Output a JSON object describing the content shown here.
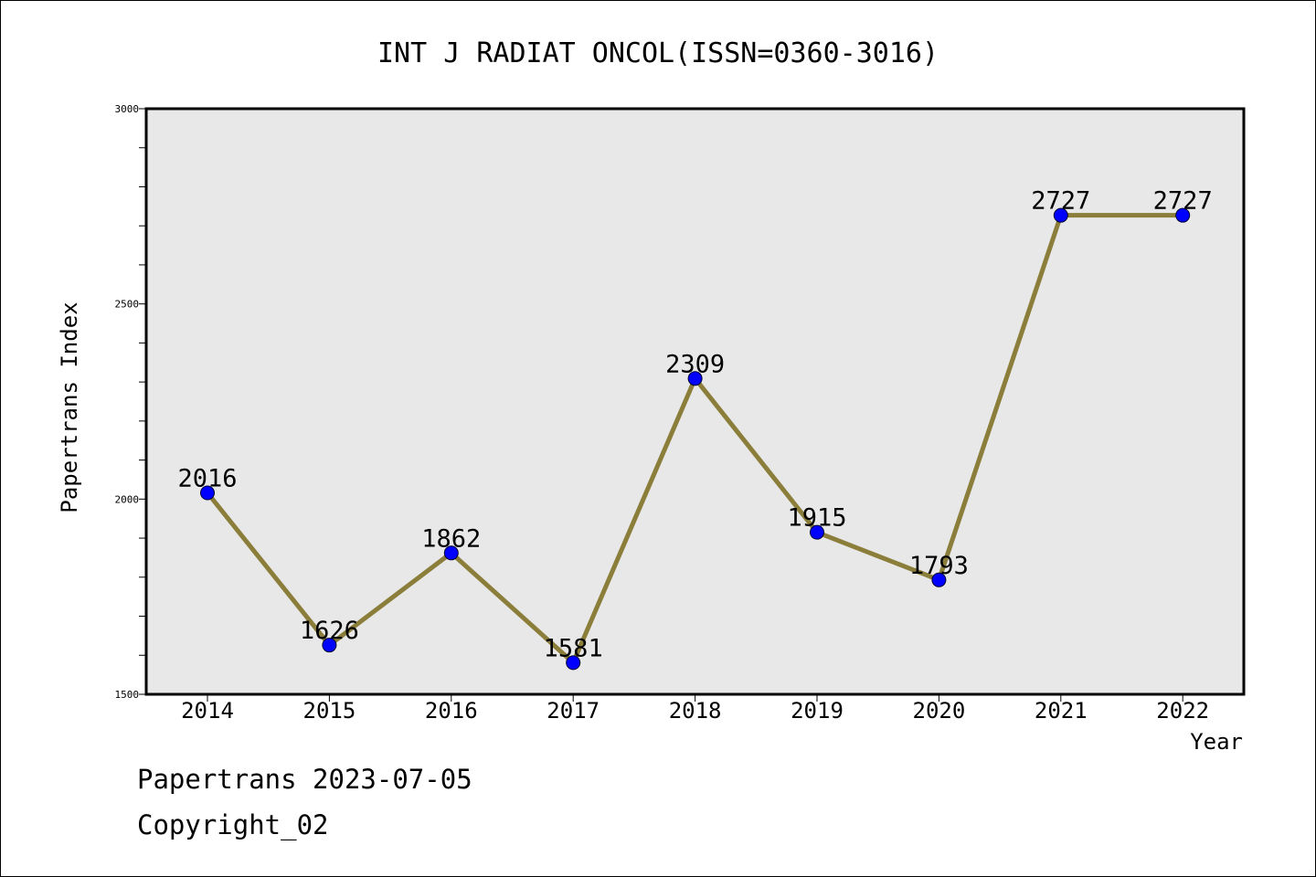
{
  "chart_data": {
    "type": "line",
    "title": "INT J RADIAT ONCOL(ISSN=0360-3016)",
    "xlabel": "Year",
    "ylabel": "Papertrans Index",
    "x": [
      "2014",
      "2015",
      "2016",
      "2017",
      "2018",
      "2019",
      "2020",
      "2021",
      "2022"
    ],
    "series": [
      {
        "values": [
          2016,
          1626,
          1862,
          1581,
          2309,
          1915,
          1793,
          2727,
          2727
        ]
      }
    ],
    "data_labels": [
      "2016",
      "1626",
      "1862",
      "1581",
      "2309",
      "1915",
      "1793",
      "2727",
      "2727"
    ],
    "ylim": [
      1500,
      3000
    ],
    "yticks": [
      1500,
      2000,
      2500,
      3000
    ],
    "ytick_labels": [
      "1500",
      "2000",
      "2500",
      "3000"
    ],
    "grid": false,
    "line_color": "#8B7D3A",
    "marker_color": "#0000FF",
    "plot_background": "#E8E8E8"
  },
  "footer": {
    "line1": "Papertrans 2023-07-05",
    "line2": "Copyright_02"
  }
}
